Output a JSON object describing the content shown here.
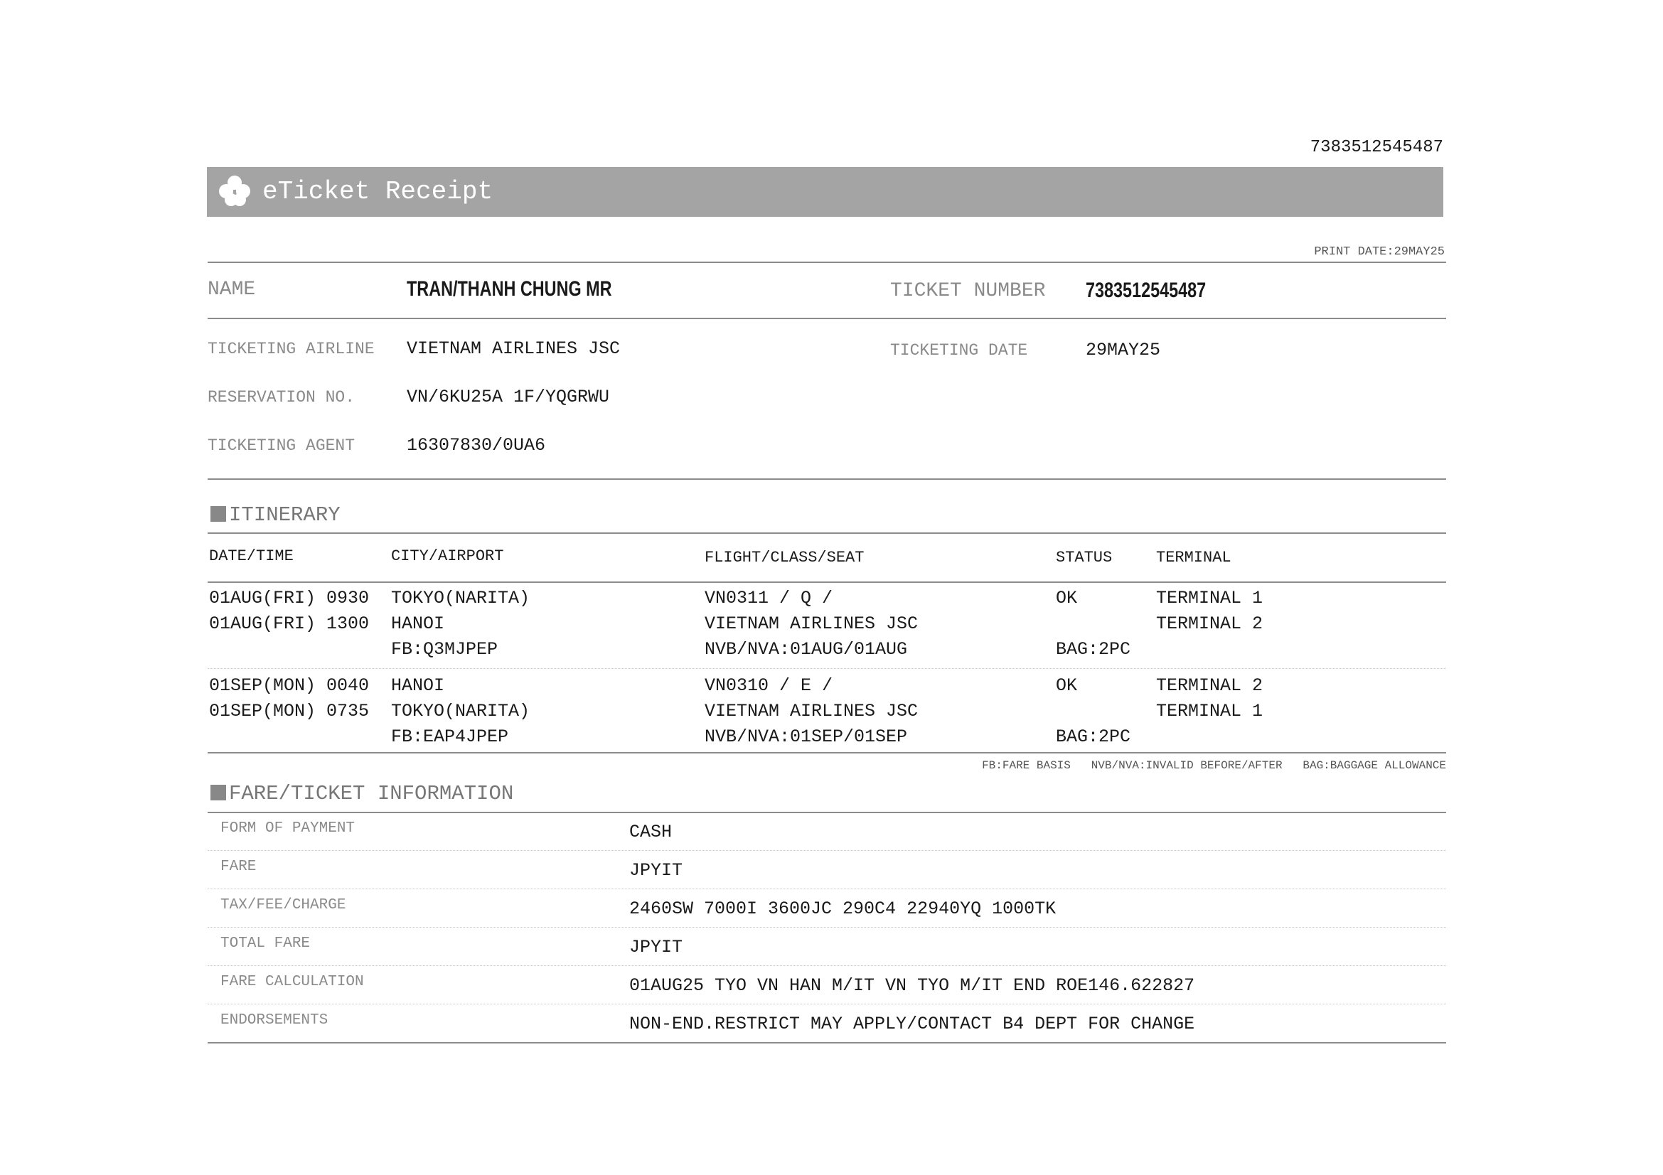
{
  "header": {
    "top_ticket_number": "7383512545487",
    "title": "eTicket Receipt",
    "logo_icon": "lotus-icon",
    "print_date": "PRINT DATE:29MAY25"
  },
  "passenger": {
    "name_label": "NAME",
    "name": "TRAN/THANH CHUNG MR",
    "ticket_number_label": "TICKET NUMBER",
    "ticket_number": "7383512545487",
    "airline_label": "TICKETING AIRLINE",
    "airline": "VIETNAM AIRLINES JSC",
    "date_label": "TICKETING DATE",
    "date": "29MAY25",
    "reservation_label": "RESERVATION NO.",
    "reservation": "VN/6KU25A 1F/YQGRWU",
    "agent_label": "TICKETING AGENT",
    "agent": "16307830/0UA6"
  },
  "itinerary": {
    "title": "ITINERARY",
    "columns": [
      "DATE/TIME",
      "CITY/AIRPORT",
      "FLIGHT/CLASS/SEAT",
      "STATUS",
      "TERMINAL"
    ],
    "segments": [
      {
        "dep_time": "01AUG(FRI) 0930",
        "arr_time": "01AUG(FRI) 1300",
        "dep_city": "TOKYO(NARITA)",
        "arr_city": "HANOI",
        "fare_basis": "FB:Q3MJPEP",
        "flight": "VN0311 / Q /",
        "carrier": "VIETNAM AIRLINES JSC",
        "validity": "NVB/NVA:01AUG/01AUG",
        "status": "OK",
        "baggage": "BAG:2PC",
        "dep_terminal": "TERMINAL 1",
        "arr_terminal": "TERMINAL 2"
      },
      {
        "dep_time": "01SEP(MON) 0040",
        "arr_time": "01SEP(MON) 0735",
        "dep_city": "HANOI",
        "arr_city": "TOKYO(NARITA)",
        "fare_basis": "FB:EAP4JPEP",
        "flight": "VN0310 / E /",
        "carrier": "VIETNAM AIRLINES JSC",
        "validity": "NVB/NVA:01SEP/01SEP",
        "status": "OK",
        "baggage": "BAG:2PC",
        "dep_terminal": "TERMINAL 2",
        "arr_terminal": "TERMINAL 1"
      }
    ],
    "legend": [
      "FB:FARE BASIS",
      "NVB/NVA:INVALID BEFORE/AFTER",
      "BAG:BAGGAGE ALLOWANCE"
    ]
  },
  "fare": {
    "title": "FARE/TICKET INFORMATION",
    "rows": [
      {
        "label": "FORM OF PAYMENT",
        "value": "CASH"
      },
      {
        "label": "FARE",
        "value": "JPYIT"
      },
      {
        "label": "TAX/FEE/CHARGE",
        "value": "2460SW 7000I 3600JC 290C4 22940YQ 1000TK"
      },
      {
        "label": "TOTAL FARE",
        "value": "JPYIT"
      },
      {
        "label": "FARE CALCULATION",
        "value": "01AUG25 TYO VN HAN M/IT VN TYO M/IT END ROE146.622827"
      },
      {
        "label": "ENDORSEMENTS",
        "value": "NON-END.RESTRICT MAY APPLY/CONTACT B4 DEPT FOR CHANGE"
      }
    ]
  }
}
